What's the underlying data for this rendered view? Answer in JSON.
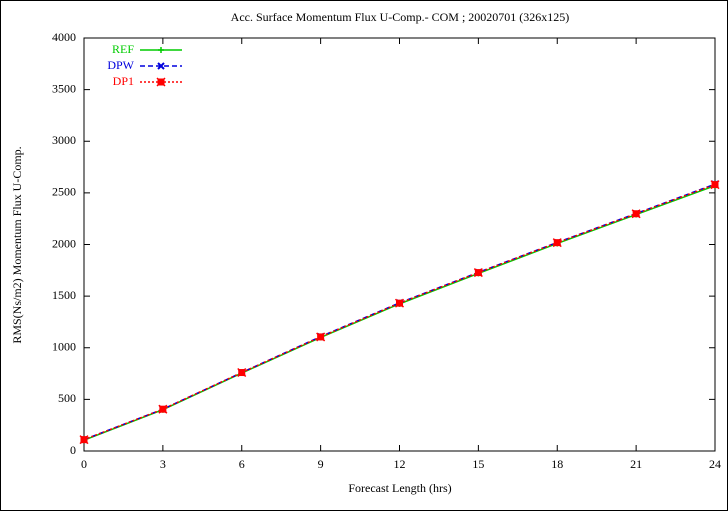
{
  "chart_data": {
    "type": "line",
    "title": "Acc. Surface Momentum Flux U-Comp.- COM ; 20020701 (326x125)",
    "x_label": "Forecast Length (hrs)",
    "y_label": "RMS(Ns/m2) Momentum Flux U-Comp.",
    "x": [
      0,
      3,
      6,
      9,
      12,
      15,
      18,
      21,
      24
    ],
    "series": [
      {
        "name": "REF",
        "color": "#00cc00",
        "line_style": "solid",
        "marker": "plus",
        "values": [
          105,
          400,
          755,
          1100,
          1425,
          1720,
          2010,
          2290,
          2570
        ]
      },
      {
        "name": "DPW",
        "color": "#0000dd",
        "line_style": "dashed",
        "marker": "cross",
        "values": [
          110,
          405,
          760,
          1108,
          1435,
          1730,
          2020,
          2300,
          2585
        ]
      },
      {
        "name": "DP1",
        "color": "#ff0000",
        "line_style": "dotted",
        "marker": "box",
        "values": [
          110,
          405,
          760,
          1105,
          1432,
          1728,
          2018,
          2298,
          2580
        ]
      }
    ],
    "xlim": [
      0,
      24
    ],
    "xticks": [
      0,
      3,
      6,
      9,
      12,
      15,
      18,
      21,
      24
    ],
    "ylim": [
      0,
      4000
    ],
    "yticks": [
      0,
      500,
      1000,
      1500,
      2000,
      2500,
      3000,
      3500,
      4000
    ],
    "grid": false,
    "legend": "top-left"
  }
}
